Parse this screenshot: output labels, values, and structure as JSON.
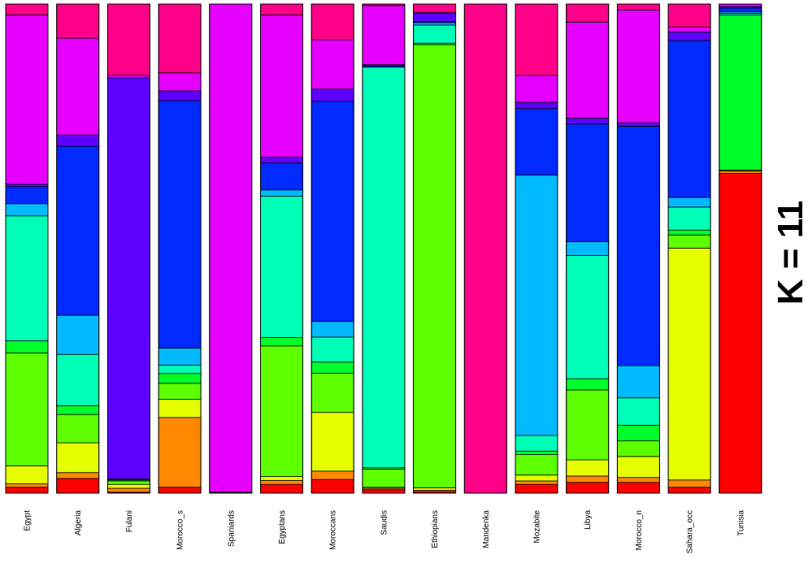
{
  "chart_data": {
    "type": "bar",
    "stacked": true,
    "normalized": true,
    "title": "K = 11",
    "xlabel": "",
    "ylabel": "",
    "ylim": [
      0,
      100
    ],
    "grid": false,
    "legend": "none",
    "clusters": [
      "1",
      "2",
      "3",
      "4",
      "5",
      "6",
      "7",
      "8",
      "9",
      "10",
      "11"
    ],
    "cluster_colors": [
      "#FF0000",
      "#FF8800",
      "#E5FF00",
      "#5EFF00",
      "#00FF2A",
      "#00FFB6",
      "#00B9FF",
      "#002AFF",
      "#5E00FF",
      "#E500FF",
      "#FF0088"
    ],
    "categories": [
      "Egypt",
      "Algeria",
      "Fulani",
      "Morocco_s",
      "Spaniards",
      "Egyptans",
      "Moroccans",
      "Saudis",
      "Ethiopians",
      "Mandenka",
      "Mozabite",
      "Libya",
      "Morocco_n",
      "Sahara_occ",
      "Tunisia"
    ],
    "series_by_category": [
      [
        1.2,
        0.7,
        3.7,
        23.1,
        2.5,
        25.6,
        2.5,
        3.5,
        0.5,
        34.7,
        2.2
      ],
      [
        3.0,
        1.2,
        6.1,
        5.8,
        1.8,
        10.5,
        8.0,
        34.6,
        2.3,
        19.8,
        7.0
      ],
      [
        0.2,
        0.8,
        0.8,
        0.7,
        0.2,
        0,
        0,
        0.2,
        82.1,
        0.5,
        14.6
      ],
      [
        1.2,
        14.3,
        3.7,
        3.3,
        2.0,
        1.7,
        3.5,
        50.7,
        2.0,
        3.7,
        14.1
      ],
      [
        0.1,
        0.1,
        0,
        0,
        0,
        0,
        0,
        0,
        0,
        99.8,
        0
      ],
      [
        1.8,
        0.8,
        0.8,
        26.7,
        1.7,
        28.9,
        1.3,
        5.5,
        1.2,
        29.1,
        2.2
      ],
      [
        2.8,
        1.7,
        12.0,
        8.0,
        2.3,
        5.1,
        3.2,
        45.0,
        2.5,
        10.1,
        7.3
      ],
      [
        0.7,
        0.3,
        0.2,
        3.7,
        0.3,
        81.9,
        0,
        0.3,
        0.2,
        12.1,
        0.3
      ],
      [
        0.3,
        0.3,
        0.5,
        90.7,
        0.3,
        3.7,
        0.5,
        0.2,
        1.7,
        0.2,
        1.7
      ],
      [
        0,
        0,
        0,
        0,
        0,
        0,
        0,
        0,
        0,
        0,
        100
      ],
      [
        1.8,
        0.7,
        1.2,
        4.2,
        0.7,
        3.2,
        53.3,
        13.6,
        1.3,
        5.5,
        14.6
      ],
      [
        2.2,
        1.3,
        3.3,
        14.3,
        2.3,
        25.2,
        2.8,
        24.1,
        1.2,
        19.6,
        3.7
      ],
      [
        2.2,
        1.0,
        4.3,
        3.2,
        3.2,
        5.6,
        6.6,
        49.0,
        0.7,
        23.1,
        1.2
      ],
      [
        1.2,
        1.5,
        47.5,
        2.7,
        1.0,
        4.7,
        2.0,
        32.1,
        1.8,
        1.0,
        4.7
      ],
      [
        65.3,
        0.5,
        0.2,
        0,
        31.7,
        0.3,
        0.3,
        0.8,
        0.3,
        0.5,
        0
      ]
    ]
  }
}
